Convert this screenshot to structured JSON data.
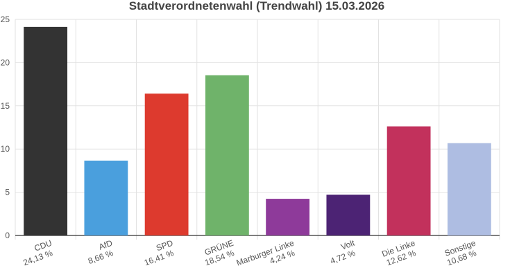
{
  "chart_data": {
    "type": "bar",
    "title": "Stadtverordnetenwahl (Trendwahl) 15.03.2026",
    "categories": [
      "CDU",
      "AfD",
      "SPD",
      "GRÜNE",
      "Marburger Linke",
      "Volt",
      "Die Linke",
      "Sonstige"
    ],
    "values": [
      24.13,
      8.66,
      16.41,
      18.54,
      4.24,
      4.72,
      12.62,
      10.68
    ],
    "value_labels": [
      "24,13 %",
      "8,66 %",
      "16,41 %",
      "18,54 %",
      "4,24 %",
      "4,72 %",
      "12,62 %",
      "10,68 %"
    ],
    "colors": [
      "#333333",
      "#4a9fdd",
      "#dd3a2e",
      "#6fb36a",
      "#8e3a9a",
      "#4c2374",
      "#c2315c",
      "#aebde2"
    ],
    "ylim": [
      0,
      25
    ],
    "yticks": [
      0,
      5,
      10,
      15,
      20,
      25
    ],
    "grid": true
  }
}
